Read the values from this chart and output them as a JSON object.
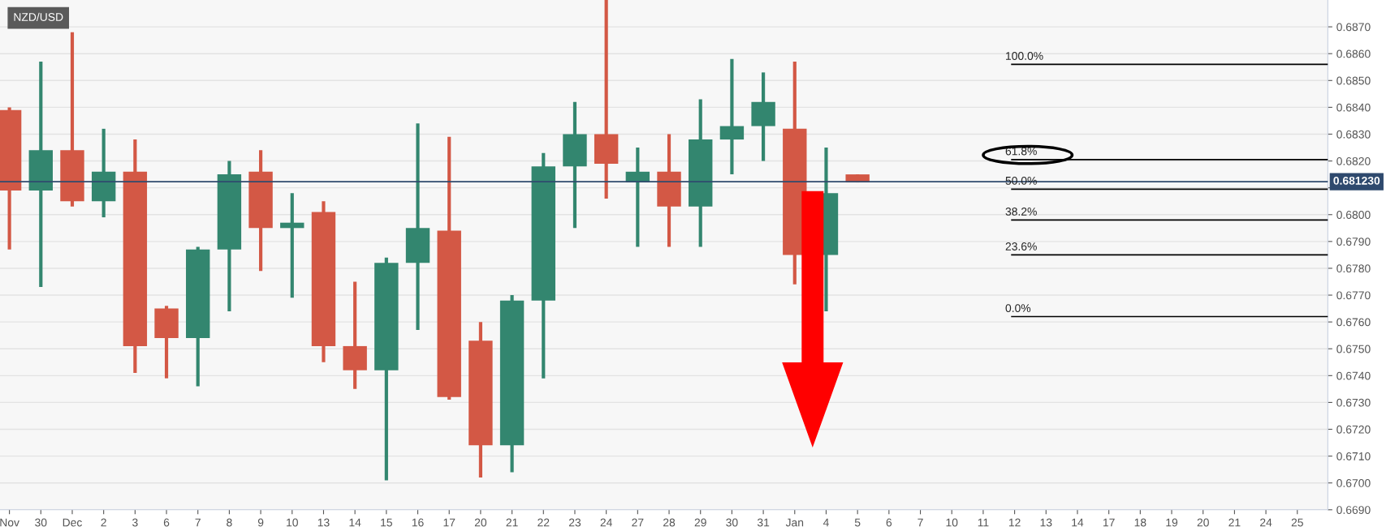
{
  "chart_data": {
    "type": "candlestick",
    "title": "NZD/USD",
    "categories": [
      "Nov",
      "30",
      "Dec",
      "2",
      "3",
      "6",
      "7",
      "8",
      "9",
      "10",
      "13",
      "14",
      "15",
      "16",
      "17",
      "20",
      "21",
      "22",
      "23",
      "24",
      "27",
      "28",
      "29",
      "30",
      "31",
      "Jan",
      "4",
      "5",
      "6",
      "7",
      "10",
      "11",
      "12",
      "13",
      "14",
      "17",
      "18",
      "19",
      "20",
      "21",
      "24",
      "25"
    ],
    "ohlc": [
      [
        0.6839,
        0.684,
        0.6787,
        0.6809
      ],
      [
        0.6809,
        0.6857,
        0.6773,
        0.6824
      ],
      [
        0.6824,
        0.6868,
        0.6803,
        0.6805
      ],
      [
        0.6805,
        0.6832,
        0.6799,
        0.6816
      ],
      [
        0.6816,
        0.6828,
        0.6741,
        0.6751
      ],
      [
        0.6765,
        0.6766,
        0.6739,
        0.6754
      ],
      [
        0.6754,
        0.6788,
        0.6736,
        0.6787
      ],
      [
        0.6787,
        0.682,
        0.6764,
        0.6815
      ],
      [
        0.6816,
        0.6824,
        0.6779,
        0.6795
      ],
      [
        0.6795,
        0.6808,
        0.6769,
        0.6797
      ],
      [
        0.6801,
        0.6805,
        0.6745,
        0.6751
      ],
      [
        0.6751,
        0.6775,
        0.6735,
        0.6742
      ],
      [
        0.6742,
        0.6784,
        0.6701,
        0.6782
      ],
      [
        0.6782,
        0.6834,
        0.6757,
        0.6795
      ],
      [
        0.6794,
        0.6829,
        0.6731,
        0.6732
      ],
      [
        0.6753,
        0.676,
        0.6702,
        0.6714
      ],
      [
        0.6714,
        0.677,
        0.6704,
        0.6768
      ],
      [
        0.6768,
        0.6823,
        0.6739,
        0.6818
      ],
      [
        0.6818,
        0.6842,
        0.6795,
        0.683
      ],
      [
        0.683,
        0.688,
        0.6806,
        0.6819
      ],
      [
        0.6812,
        0.6825,
        0.6788,
        0.6816
      ],
      [
        0.6816,
        0.683,
        0.6788,
        0.6803
      ],
      [
        0.6803,
        0.6843,
        0.6788,
        0.6828
      ],
      [
        0.6828,
        0.6858,
        0.6815,
        0.6833
      ],
      [
        0.6833,
        0.6853,
        0.682,
        0.6842
      ],
      [
        0.6832,
        0.6857,
        0.6774,
        0.6785
      ],
      [
        0.6785,
        0.6825,
        0.6764,
        0.6808
      ],
      [
        0.6815,
        0.6815,
        0.6812,
        0.6812
      ],
      null,
      null,
      null,
      null,
      null,
      null,
      null,
      null,
      null,
      null,
      null,
      null,
      null,
      null
    ],
    "colors": [
      "#d35845",
      "#33866f",
      "#d35845",
      "#33866f",
      "#d35845",
      "#d35845",
      "#33866f",
      "#33866f",
      "#d35845",
      "#33866f",
      "#d35845",
      "#d35845",
      "#33866f",
      "#33866f",
      "#d35845",
      "#d35845",
      "#33866f",
      "#33866f",
      "#33866f",
      "#d35845",
      "#33866f",
      "#d35845",
      "#33866f",
      "#33866f",
      "#33866f",
      "#d35845",
      "#33866f",
      "#d35845",
      null,
      null,
      null,
      null,
      null,
      null,
      null,
      null,
      null,
      null,
      null,
      null,
      null,
      null
    ],
    "ylim": [
      0.669,
      0.688
    ],
    "yticks": [
      {
        "value": 0.669,
        "label": "0.6690"
      },
      {
        "value": 0.67,
        "label": "0.6700"
      },
      {
        "value": 0.671,
        "label": "0.6710"
      },
      {
        "value": 0.672,
        "label": "0.6720"
      },
      {
        "value": 0.673,
        "label": "0.6730"
      },
      {
        "value": 0.674,
        "label": "0.6740"
      },
      {
        "value": 0.675,
        "label": "0.6750"
      },
      {
        "value": 0.676,
        "label": "0.6760"
      },
      {
        "value": 0.677,
        "label": "0.6770"
      },
      {
        "value": 0.678,
        "label": "0.6780"
      },
      {
        "value": 0.679,
        "label": "0.6790"
      },
      {
        "value": 0.68,
        "label": "0.6800"
      },
      {
        "value": 0.681,
        "label": null
      },
      {
        "value": 0.682,
        "label": "0.6820"
      },
      {
        "value": 0.683,
        "label": "0.6830"
      },
      {
        "value": 0.684,
        "label": "0.6840"
      },
      {
        "value": 0.685,
        "label": "0.6850"
      },
      {
        "value": 0.686,
        "label": "0.6860"
      },
      {
        "value": 0.687,
        "label": "0.6870"
      }
    ],
    "annotations": [
      {
        "text": "100.0%",
        "x": "12",
        "y": 0.6856
      },
      {
        "text": "61.8%",
        "x": "12",
        "y": 0.68205
      },
      {
        "text": "50.0%",
        "x": "12",
        "y": 0.68095
      },
      {
        "text": "38.2%",
        "x": "12",
        "y": 0.6798
      },
      {
        "text": "23.6%",
        "x": "12",
        "y": 0.6785
      },
      {
        "text": "0.0%",
        "x": "12",
        "y": 0.6762
      }
    ],
    "grid": "y",
    "ref_lines": [
      {
        "axis": "y",
        "value": 0.6856,
        "color": "#000000"
      },
      {
        "axis": "y",
        "value": 0.68205,
        "color": "#000000"
      },
      {
        "axis": "y",
        "value": 0.68095,
        "color": "#000000"
      },
      {
        "axis": "y",
        "value": 0.6798,
        "color": "#000000"
      },
      {
        "axis": "y",
        "value": 0.6785,
        "color": "#000000"
      },
      {
        "axis": "y",
        "value": 0.6762,
        "color": "#000000"
      },
      {
        "axis": "y",
        "value": 0.68123,
        "label": "0.681230",
        "color": "#2f4a6e"
      }
    ]
  }
}
